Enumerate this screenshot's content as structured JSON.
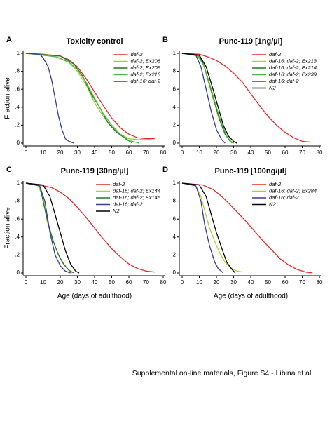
{
  "chart_data": [
    {
      "type": "line",
      "label": "A",
      "title": "Toxicity control",
      "ylabel": "Fraction alive",
      "xlim": [
        0,
        80
      ],
      "ylim": [
        0,
        1
      ],
      "xticks": [
        0,
        10,
        20,
        30,
        40,
        50,
        60,
        70,
        80
      ],
      "yticks": [
        0,
        {
          "value": 0.2,
          "label": ".2"
        },
        {
          "value": 0.4,
          "label": ".4"
        },
        {
          "value": 0.6,
          "label": ".6"
        },
        {
          "value": 0.8,
          "label": ".8"
        },
        1
      ],
      "legend": "upper right",
      "series": [
        {
          "name": "daf-2",
          "color": "#e8262a",
          "x": [
            0,
            10,
            20,
            25,
            30,
            35,
            40,
            45,
            50,
            55,
            60,
            65,
            70,
            75
          ],
          "values": [
            1,
            0.99,
            0.97,
            0.93,
            0.85,
            0.72,
            0.57,
            0.42,
            0.28,
            0.17,
            0.1,
            0.06,
            0.05,
            0.05
          ]
        },
        {
          "name": "daf-2; Ex208",
          "color": "#9acd32",
          "x": [
            0,
            15,
            25,
            30,
            35,
            40,
            45,
            50,
            55,
            60,
            65,
            73
          ],
          "values": [
            1,
            0.98,
            0.9,
            0.8,
            0.65,
            0.45,
            0.3,
            0.18,
            0.1,
            0.05,
            0.04,
            0.04
          ]
        },
        {
          "name": "daf-2; Ex209",
          "color": "#1e7a1e",
          "x": [
            0,
            20,
            28,
            33,
            38,
            43,
            48,
            53,
            58,
            62
          ],
          "values": [
            1,
            0.97,
            0.88,
            0.75,
            0.55,
            0.4,
            0.22,
            0.12,
            0.05,
            0
          ]
        },
        {
          "name": "daf-2; Ex218",
          "color": "#4cb84c",
          "x": [
            0,
            18,
            25,
            30,
            35,
            40,
            45,
            50,
            55,
            60,
            66
          ],
          "values": [
            1,
            0.96,
            0.9,
            0.82,
            0.68,
            0.5,
            0.33,
            0.2,
            0.1,
            0.03,
            0
          ]
        },
        {
          "name": "daf-16; daf-2",
          "color": "#3a3a9a",
          "x": [
            0,
            8,
            10,
            13,
            15,
            17,
            19,
            21,
            23,
            25,
            28
          ],
          "values": [
            1,
            0.99,
            0.95,
            0.85,
            0.7,
            0.5,
            0.3,
            0.15,
            0.05,
            0.02,
            0
          ]
        }
      ]
    },
    {
      "type": "line",
      "label": "B",
      "title": "Punc-119 [1ng/µl]",
      "xlim": [
        0,
        80
      ],
      "ylim": [
        0,
        1
      ],
      "xticks": [
        0,
        10,
        20,
        30,
        40,
        50,
        60,
        70,
        80
      ],
      "yticks": [
        0,
        {
          "value": 0.2,
          "label": ".2"
        },
        {
          "value": 0.4,
          "label": ".4"
        },
        {
          "value": 0.6,
          "label": ".6"
        },
        {
          "value": 0.8,
          "label": ".8"
        },
        1
      ],
      "legend": "upper right",
      "series": [
        {
          "name": "daf-2",
          "color": "#e8262a",
          "x": [
            0,
            10,
            15,
            20,
            25,
            30,
            35,
            40,
            45,
            50,
            55,
            60,
            65,
            70,
            75
          ],
          "values": [
            1,
            0.99,
            0.96,
            0.92,
            0.86,
            0.78,
            0.68,
            0.55,
            0.42,
            0.3,
            0.2,
            0.12,
            0.06,
            0.02,
            0.01
          ]
        },
        {
          "name": "daf-16; daf-2; Ex213",
          "color": "#b5cf2a",
          "x": [
            0,
            8,
            12,
            15,
            18,
            21,
            24,
            27,
            30
          ],
          "values": [
            1,
            0.98,
            0.9,
            0.7,
            0.5,
            0.3,
            0.15,
            0.05,
            0
          ]
        },
        {
          "name": "daf-16; daf-2; Ex214",
          "color": "#1e7a1e",
          "x": [
            0,
            10,
            13,
            16,
            19,
            22,
            25,
            28,
            30
          ],
          "values": [
            1,
            0.97,
            0.85,
            0.65,
            0.45,
            0.25,
            0.1,
            0.02,
            0
          ]
        },
        {
          "name": "daf-16; daf-2; Ex239",
          "color": "#4cb84c",
          "x": [
            0,
            9,
            13,
            17,
            20,
            23,
            26,
            29
          ],
          "values": [
            1,
            0.98,
            0.85,
            0.6,
            0.4,
            0.22,
            0.08,
            0
          ]
        },
        {
          "name": "daf-16; daf-2",
          "color": "#3a3a9a",
          "x": [
            0,
            8,
            11,
            14,
            17,
            20,
            23,
            25
          ],
          "values": [
            1,
            0.98,
            0.85,
            0.6,
            0.35,
            0.15,
            0.04,
            0
          ]
        },
        {
          "name": "N2",
          "color": "#000000",
          "x": [
            0,
            10,
            14,
            18,
            21,
            24,
            27,
            30,
            32
          ],
          "values": [
            1,
            0.98,
            0.85,
            0.6,
            0.4,
            0.2,
            0.08,
            0.02,
            0
          ]
        }
      ]
    },
    {
      "type": "line",
      "label": "C",
      "title": "Punc-119 [30ng/µl]",
      "ylabel": "Fraction alive",
      "xlabel": "Age (days of adulthood)",
      "xlim": [
        0,
        80
      ],
      "ylim": [
        0,
        1
      ],
      "xticks": [
        0,
        10,
        20,
        30,
        40,
        50,
        60,
        70,
        80
      ],
      "yticks": [
        0,
        {
          "value": 0.2,
          "label": ".2"
        },
        {
          "value": 0.4,
          "label": ".4"
        },
        {
          "value": 0.6,
          "label": ".6"
        },
        {
          "value": 0.8,
          "label": ".8"
        },
        1
      ],
      "legend": "upper right",
      "series": [
        {
          "name": "daf-2",
          "color": "#e8262a",
          "x": [
            0,
            10,
            15,
            20,
            25,
            30,
            35,
            40,
            45,
            50,
            55,
            60,
            65,
            70,
            75
          ],
          "values": [
            1,
            0.97,
            0.95,
            0.9,
            0.83,
            0.73,
            0.62,
            0.5,
            0.38,
            0.27,
            0.18,
            0.1,
            0.05,
            0.02,
            0.01
          ]
        },
        {
          "name": "daf-16; daf-2; Ex144",
          "color": "#b5cf2a",
          "x": [
            0,
            7,
            10,
            12,
            15,
            18,
            21,
            24,
            27
          ],
          "values": [
            1,
            0.97,
            0.85,
            0.6,
            0.4,
            0.25,
            0.12,
            0.05,
            0
          ]
        },
        {
          "name": "daf-16; daf-2; Ex145",
          "color": "#1e7a1e",
          "x": [
            0,
            8,
            10,
            13,
            16,
            19,
            22,
            25,
            28
          ],
          "values": [
            1,
            0.97,
            0.8,
            0.55,
            0.35,
            0.2,
            0.1,
            0.03,
            0
          ]
        },
        {
          "name": "daf-16; daf-2",
          "color": "#3a3a9a",
          "x": [
            0,
            8,
            11,
            14,
            17,
            20,
            23,
            26
          ],
          "values": [
            1,
            0.97,
            0.8,
            0.45,
            0.2,
            0.08,
            0.02,
            0
          ]
        },
        {
          "name": "N2",
          "color": "#000000",
          "x": [
            0,
            10,
            14,
            17,
            20,
            23,
            26,
            29,
            31
          ],
          "values": [
            1,
            0.98,
            0.85,
            0.65,
            0.45,
            0.25,
            0.1,
            0.02,
            0
          ]
        }
      ]
    },
    {
      "type": "line",
      "label": "D",
      "title": "Punc-119 [100ng/µl]",
      "xlabel": "Age (days of adulthood)",
      "xlim": [
        0,
        80
      ],
      "ylim": [
        0,
        1
      ],
      "xticks": [
        0,
        10,
        20,
        30,
        40,
        50,
        60,
        70,
        80
      ],
      "yticks": [
        0,
        {
          "value": 0.2,
          "label": ".2"
        },
        {
          "value": 0.4,
          "label": ".4"
        },
        {
          "value": 0.6,
          "label": ".6"
        },
        {
          "value": 0.8,
          "label": ".8"
        },
        1
      ],
      "legend": "upper right",
      "series": [
        {
          "name": "daf-2",
          "color": "#e8262a",
          "x": [
            0,
            12,
            18,
            22,
            27,
            32,
            37,
            42,
            47,
            52,
            57,
            62,
            67,
            72,
            76
          ],
          "values": [
            1,
            0.98,
            0.93,
            0.87,
            0.78,
            0.68,
            0.58,
            0.47,
            0.36,
            0.26,
            0.16,
            0.09,
            0.04,
            0.01,
            0
          ]
        },
        {
          "name": "daf-16; daf-2; Ex284",
          "color": "#b5cf2a",
          "x": [
            0,
            8,
            11,
            13,
            16,
            19,
            22,
            25,
            28,
            32,
            35
          ],
          "values": [
            1,
            0.97,
            0.85,
            0.7,
            0.5,
            0.35,
            0.22,
            0.12,
            0.06,
            0.02,
            0.01
          ]
        },
        {
          "name": "daf-16; daf-2",
          "color": "#3a3a9a",
          "x": [
            0,
            8,
            11,
            13,
            16,
            19,
            21,
            24
          ],
          "values": [
            1,
            0.97,
            0.8,
            0.55,
            0.3,
            0.12,
            0.05,
            0
          ]
        },
        {
          "name": "N2",
          "color": "#000000",
          "x": [
            0,
            10,
            14,
            17,
            20,
            23,
            26,
            29,
            31
          ],
          "values": [
            1,
            0.98,
            0.85,
            0.65,
            0.45,
            0.28,
            0.12,
            0.04,
            0
          ]
        }
      ]
    }
  ],
  "caption": "Supplemental on-line materials, Figure S4 - Libina et al."
}
